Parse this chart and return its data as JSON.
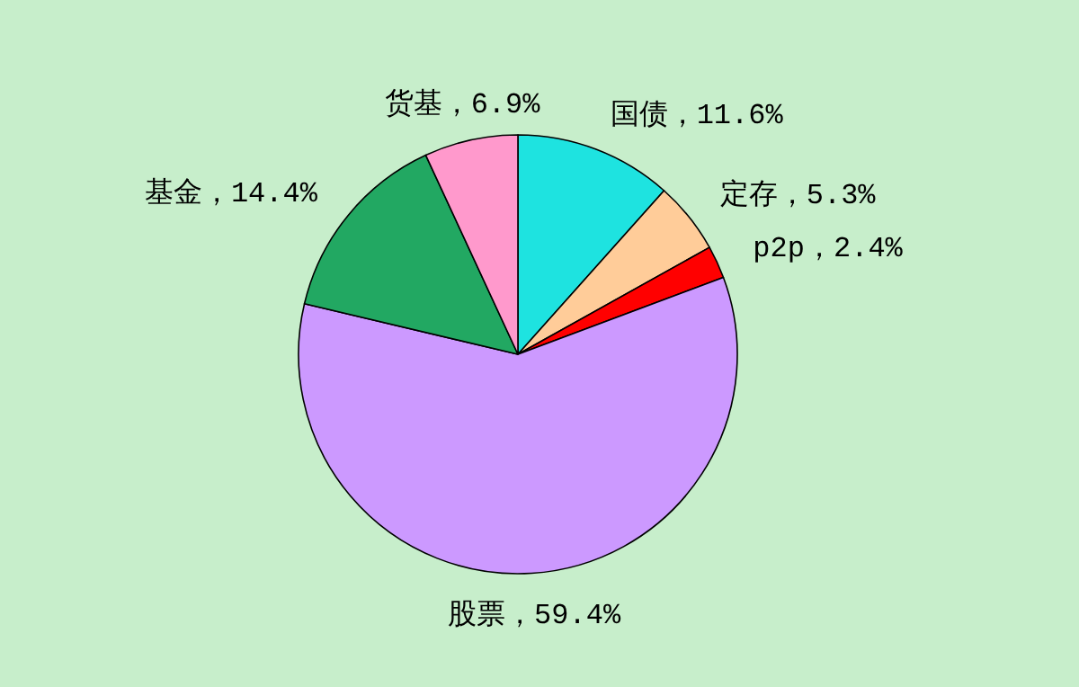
{
  "chart_data": {
    "type": "pie",
    "categories": [
      "国债",
      "定存",
      "p2p",
      "股票",
      "基金",
      "货基"
    ],
    "values": [
      11.6,
      5.3,
      2.4,
      59.4,
      14.4,
      6.9
    ],
    "colors": [
      "#1ee3e0",
      "#ffcc99",
      "#ff0000",
      "#cc99ff",
      "#22a862",
      "#ff99cc"
    ],
    "value_labels": [
      "，11.6%",
      "，5.3%",
      "，2.4%",
      "，59.4%",
      "，14.4%",
      "，6.9%"
    ]
  }
}
